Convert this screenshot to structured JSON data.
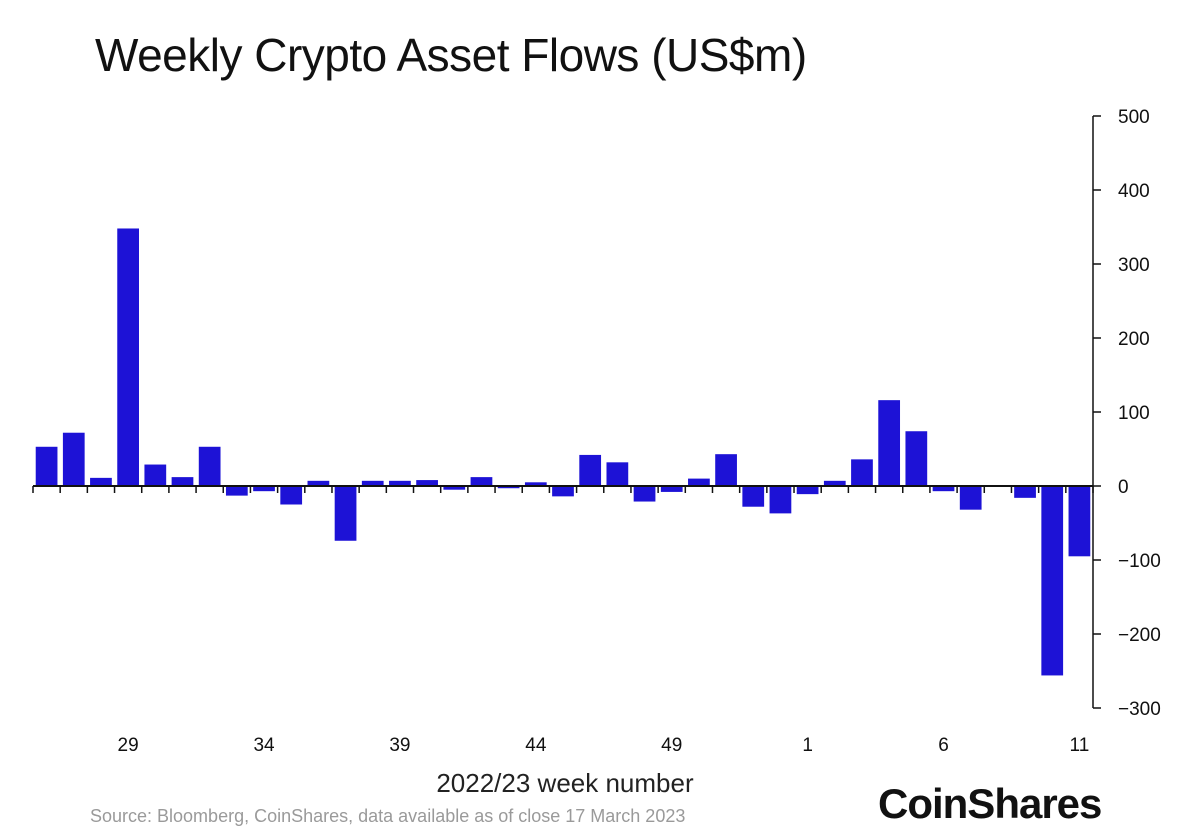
{
  "chart_data": {
    "type": "bar",
    "title": "Weekly Crypto Asset Flows (US$m)",
    "xlabel": "2022/23 week number",
    "ylabel": "",
    "ylim": [
      -300,
      500
    ],
    "yticks": [
      500,
      400,
      300,
      200,
      100,
      0,
      -100,
      -200,
      -300
    ],
    "y_axis_position": "right",
    "grid": false,
    "legend": "none",
    "bar_color": "#1d12d6",
    "x_tick_labels": [
      {
        "label": "29",
        "week_index": 3
      },
      {
        "label": "34",
        "week_index": 8
      },
      {
        "label": "39",
        "week_index": 13
      },
      {
        "label": "44",
        "week_index": 18
      },
      {
        "label": "49",
        "week_index": 23
      },
      {
        "label": "1",
        "week_index": 28
      },
      {
        "label": "6",
        "week_index": 33
      },
      {
        "label": "11",
        "week_index": 38
      }
    ],
    "values": [
      53,
      72,
      11,
      348,
      29,
      12,
      53,
      -13,
      -7,
      -25,
      7,
      -74,
      7,
      7,
      8,
      -5,
      12,
      -3,
      5,
      -14,
      42,
      32,
      -21,
      -8,
      10,
      43,
      -28,
      -37,
      -11,
      7,
      36,
      116,
      74,
      -7,
      -32,
      0,
      -16,
      -256,
      -95
    ]
  },
  "footer": {
    "source": "Source: Bloomberg, CoinShares, data available as of close 17 March 2023",
    "logo_text": "CoinShares"
  }
}
